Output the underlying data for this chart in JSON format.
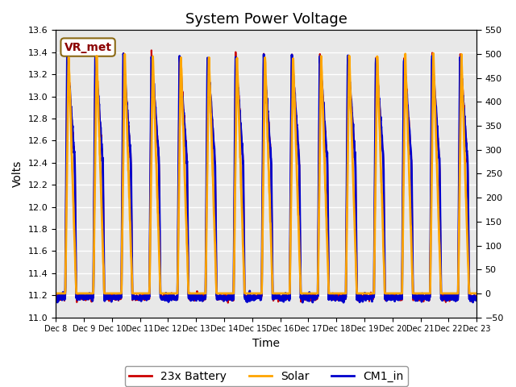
{
  "title": "System Power Voltage",
  "xlabel": "Time",
  "ylabel": "Volts",
  "ylim_left": [
    11.0,
    13.6
  ],
  "ylim_right": [
    -50,
    550
  ],
  "yticks_left": [
    11.0,
    11.2,
    11.4,
    11.6,
    11.8,
    12.0,
    12.2,
    12.4,
    12.6,
    12.8,
    13.0,
    13.2,
    13.4,
    13.6
  ],
  "yticks_right": [
    -50,
    0,
    50,
    100,
    150,
    200,
    250,
    300,
    350,
    400,
    450,
    500,
    550
  ],
  "xtick_labels": [
    "Dec 8",
    "Dec 9",
    "Dec 10",
    "Dec 11",
    "Dec 12",
    "Dec 13",
    "Dec 14",
    "Dec 15",
    "Dec 16",
    "Dec 17",
    "Dec 18",
    "Dec 19",
    "Dec 20",
    "Dec 21",
    "Dec 22",
    "Dec 23"
  ],
  "n_days": 15,
  "battery_color": "#cc0000",
  "solar_color": "#ffa500",
  "cm1_color": "#0000cc",
  "battery_lw": 1.5,
  "solar_lw": 2.0,
  "cm1_lw": 2.0,
  "battery_label": "23x Battery",
  "solar_label": "Solar",
  "cm1_label": "CM1_in",
  "vr_label": "VR_met",
  "bg_color": "#e8e8e8",
  "grid_color": "#ffffff",
  "title_fontsize": 13,
  "axis_fontsize": 10,
  "legend_fontsize": 10,
  "annotation_fontsize": 10
}
